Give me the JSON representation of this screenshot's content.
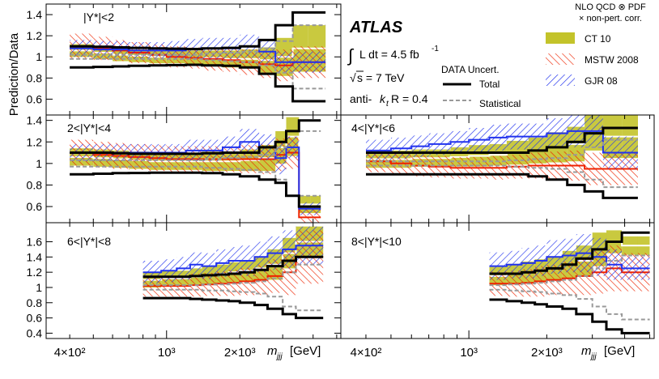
{
  "chart_data": {
    "type": "line",
    "figure": {
      "ylabel": "Prediction/Data",
      "xlabel_main": "m",
      "xlabel_sub": "jjj",
      "xlabel_unit": "[GeV]",
      "x_scale": "log",
      "xlim": [
        320,
        5200
      ],
      "x_ticks": [
        {
          "value": 400,
          "label": "4×10²"
        },
        {
          "value": 1000,
          "label": "10³"
        },
        {
          "value": 2000,
          "label": "2×10³"
        }
      ]
    },
    "atlas": {
      "brand": "ATLAS",
      "lumi_integral": "∫",
      "lumi_text": "L dt = 4.5 fb",
      "lumi_exp": "-1",
      "sqrt_sign": "√",
      "energy_text": "s = 7 TeV",
      "algo_prefix": "anti-",
      "algo_k": "k",
      "algo_sub": "t",
      "algo_suffix": " R = 0.4"
    },
    "legend": {
      "title_line1": "NLO QCD ⊗ PDF",
      "title_line2": "× non-pert. corr.",
      "theory": [
        {
          "name": "CT 10",
          "color": "#c3c32a"
        },
        {
          "name": "MSTW 2008",
          "color": "#ee2200"
        },
        {
          "name": "GJR 08",
          "color": "#2233ee"
        }
      ],
      "data_title": "DATA Uncert.",
      "total_label": "Total",
      "stat_label": "Statistical"
    },
    "colors": {
      "ct10": "#c3c32a",
      "mstw": "#ee2200",
      "gjr": "#2233ee",
      "total": "#000000",
      "stat": "#999999"
    },
    "panels": [
      {
        "label": "|Y*|<2",
        "ylim": [
          0.45,
          1.5
        ],
        "yticks": [
          {
            "value": 0.6,
            "label": "0.6"
          },
          {
            "value": 0.8,
            "label": "0.8"
          },
          {
            "value": 1.0,
            "label": "1"
          },
          {
            "value": 1.2,
            "label": "1.2"
          },
          {
            "value": 1.4,
            "label": "1.4"
          }
        ],
        "bins": [
          400,
          500,
          600,
          700,
          850,
          1000,
          1200,
          1400,
          1700,
          2000,
          2400,
          2800,
          3300,
          3800,
          4500
        ],
        "total_up": [
          1.1,
          1.095,
          1.09,
          1.085,
          1.08,
          1.078,
          1.075,
          1.08,
          1.085,
          1.1,
          1.16,
          1.3,
          1.42,
          1.42
        ],
        "total_down": [
          0.9,
          0.905,
          0.91,
          0.915,
          0.92,
          0.922,
          0.925,
          0.92,
          0.915,
          0.9,
          0.84,
          0.72,
          0.58,
          0.58
        ],
        "stat_up": [
          1.02,
          1.02,
          1.02,
          1.02,
          1.02,
          1.02,
          1.02,
          1.03,
          1.04,
          1.05,
          1.08,
          1.15,
          1.3,
          1.3
        ],
        "stat_down": [
          0.98,
          0.98,
          0.98,
          0.98,
          0.98,
          0.98,
          0.98,
          0.97,
          0.96,
          0.95,
          0.92,
          0.85,
          0.7,
          0.7
        ],
        "ct10": {
          "center": [
            1.06,
            1.04,
            1.02,
            1.01,
            1.0,
            1.0,
            0.99,
            0.99,
            0.98,
            0.98,
            0.97,
            1.0,
            1.08,
            1.08
          ],
          "half": [
            0.06,
            0.06,
            0.06,
            0.06,
            0.06,
            0.06,
            0.07,
            0.07,
            0.08,
            0.09,
            0.12,
            0.18,
            0.22,
            0.22
          ]
        },
        "mstw": {
          "center": [
            1.1,
            1.08,
            1.06,
            1.04,
            1.02,
            1.0,
            0.99,
            0.98,
            0.97,
            0.95,
            0.93,
            0.92,
            0.95,
            0.95
          ],
          "half": [
            0.12,
            0.11,
            0.1,
            0.1,
            0.1,
            0.1,
            0.1,
            0.11,
            0.11,
            0.12,
            0.13,
            0.15,
            0.15,
            0.15
          ]
        },
        "gjr": {
          "center": [
            1.08,
            1.07,
            1.07,
            1.06,
            1.06,
            1.06,
            1.07,
            1.08,
            1.08,
            1.1,
            1.05,
            0.95,
            0.95,
            0.95
          ],
          "half": [
            0.08,
            0.08,
            0.08,
            0.08,
            0.08,
            0.09,
            0.1,
            0.1,
            0.1,
            0.11,
            0.12,
            0.1,
            0.1,
            0.1
          ]
        }
      },
      {
        "label": "2<|Y*|<4",
        "ylim": [
          0.45,
          1.45
        ],
        "yticks": [
          {
            "value": 0.6,
            "label": "0.6"
          },
          {
            "value": 0.8,
            "label": "0.8"
          },
          {
            "value": 1.0,
            "label": "1"
          },
          {
            "value": 1.2,
            "label": "1.2"
          },
          {
            "value": 1.4,
            "label": "1.4"
          }
        ],
        "bins": [
          400,
          500,
          600,
          700,
          850,
          1000,
          1200,
          1400,
          1700,
          2000,
          2400,
          2800,
          3100,
          3500,
          3900,
          4300
        ],
        "total_up": [
          1.1,
          1.1,
          1.095,
          1.09,
          1.09,
          1.09,
          1.09,
          1.095,
          1.1,
          1.1,
          1.15,
          1.2,
          1.3,
          1.4,
          1.4
        ],
        "total_down": [
          0.9,
          0.905,
          0.91,
          0.912,
          0.915,
          0.915,
          0.915,
          0.91,
          0.9,
          0.88,
          0.85,
          0.82,
          0.7,
          0.6,
          0.6
        ],
        "stat_up": [
          1.03,
          1.03,
          1.03,
          1.03,
          1.03,
          1.03,
          1.03,
          1.04,
          1.05,
          1.06,
          1.08,
          1.15,
          1.3,
          1.3,
          1.3
        ],
        "stat_down": [
          0.97,
          0.97,
          0.97,
          0.97,
          0.97,
          0.97,
          0.97,
          0.96,
          0.95,
          0.94,
          0.92,
          0.85,
          0.7,
          0.7,
          0.7
        ],
        "ct10": {
          "center": [
            1.06,
            1.05,
            1.04,
            1.03,
            1.02,
            1.02,
            1.02,
            1.02,
            1.02,
            1.03,
            1.05,
            1.15,
            1.25,
            0.62,
            0.62
          ],
          "half": [
            0.08,
            0.08,
            0.08,
            0.08,
            0.08,
            0.08,
            0.08,
            0.09,
            0.09,
            0.1,
            0.12,
            0.15,
            0.18,
            0.08,
            0.08
          ]
        },
        "mstw": {
          "center": [
            1.1,
            1.08,
            1.07,
            1.06,
            1.05,
            1.04,
            1.04,
            1.04,
            1.04,
            1.04,
            1.04,
            1.08,
            1.1,
            0.5,
            0.5
          ],
          "half": [
            0.12,
            0.12,
            0.12,
            0.12,
            0.12,
            0.12,
            0.12,
            0.12,
            0.12,
            0.13,
            0.14,
            0.15,
            0.15,
            0.08,
            0.08
          ]
        },
        "gjr": {
          "center": [
            1.1,
            1.1,
            1.1,
            1.1,
            1.1,
            1.1,
            1.12,
            1.12,
            1.15,
            1.2,
            1.15,
            1.05,
            1.15,
            0.58,
            0.58
          ],
          "half": [
            0.08,
            0.08,
            0.08,
            0.08,
            0.08,
            0.08,
            0.1,
            0.1,
            0.1,
            0.12,
            0.12,
            0.15,
            0.1,
            0.06,
            0.06
          ]
        }
      },
      {
        "label": "4<|Y*|<6",
        "ylim": [
          0.45,
          1.45
        ],
        "yticks": [],
        "bins": [
          400,
          500,
          600,
          700,
          850,
          1000,
          1200,
          1400,
          1700,
          2000,
          2400,
          2800,
          3300,
          3900,
          4500
        ],
        "total_up": [
          1.1,
          1.1,
          1.1,
          1.1,
          1.1,
          1.1,
          1.1,
          1.1,
          1.12,
          1.15,
          1.2,
          1.28,
          1.33,
          1.33
        ],
        "total_down": [
          0.9,
          0.9,
          0.9,
          0.9,
          0.9,
          0.9,
          0.9,
          0.9,
          0.88,
          0.85,
          0.8,
          0.74,
          0.68,
          0.68
        ],
        "stat_up": [
          1.02,
          1.02,
          1.02,
          1.02,
          1.02,
          1.02,
          1.02,
          1.03,
          1.04,
          1.05,
          1.08,
          1.15,
          1.22,
          1.22
        ],
        "stat_down": [
          0.98,
          0.98,
          0.98,
          0.98,
          0.98,
          0.98,
          0.98,
          0.97,
          0.96,
          0.95,
          0.92,
          0.85,
          0.78,
          0.78
        ],
        "ct10": {
          "center": [
            1.04,
            1.04,
            1.05,
            1.05,
            1.06,
            1.07,
            1.08,
            1.1,
            1.12,
            1.15,
            1.18,
            1.3,
            1.25,
            1.25
          ],
          "half": [
            0.08,
            0.08,
            0.08,
            0.08,
            0.09,
            0.1,
            0.1,
            0.11,
            0.12,
            0.14,
            0.16,
            0.18,
            0.2,
            0.2
          ]
        },
        "mstw": {
          "center": [
            1.02,
            1.0,
            0.98,
            0.97,
            0.96,
            0.96,
            0.96,
            0.97,
            0.98,
            0.98,
            0.98,
            0.95,
            0.95,
            0.95
          ],
          "half": [
            0.1,
            0.1,
            0.1,
            0.1,
            0.1,
            0.1,
            0.11,
            0.11,
            0.12,
            0.13,
            0.14,
            0.15,
            0.15,
            0.15
          ]
        },
        "gjr": {
          "center": [
            1.12,
            1.14,
            1.16,
            1.18,
            1.2,
            1.22,
            1.24,
            1.25,
            1.25,
            1.28,
            1.3,
            1.3,
            1.1,
            1.1
          ],
          "half": [
            0.1,
            0.1,
            0.1,
            0.1,
            0.1,
            0.11,
            0.12,
            0.12,
            0.12,
            0.14,
            0.15,
            0.15,
            0.15,
            0.15
          ]
        }
      },
      {
        "label": "6<|Y*|<8",
        "ylim": [
          0.33,
          1.85
        ],
        "yticks": [
          {
            "value": 0.4,
            "label": "0.4"
          },
          {
            "value": 0.6,
            "label": "0.6"
          },
          {
            "value": 0.8,
            "label": "0.8"
          },
          {
            "value": 1.0,
            "label": "1"
          },
          {
            "value": 1.2,
            "label": "1.2"
          },
          {
            "value": 1.4,
            "label": "1.4"
          },
          {
            "value": 1.6,
            "label": "1.6"
          }
        ],
        "bins": [
          800,
          950,
          1100,
          1250,
          1400,
          1600,
          1800,
          2000,
          2300,
          2600,
          3000,
          3400,
          3800,
          4400
        ],
        "total_up": [
          1.14,
          1.14,
          1.14,
          1.15,
          1.16,
          1.17,
          1.18,
          1.2,
          1.23,
          1.28,
          1.35,
          1.4,
          1.4
        ],
        "total_down": [
          0.86,
          0.86,
          0.86,
          0.85,
          0.84,
          0.83,
          0.82,
          0.8,
          0.77,
          0.72,
          0.65,
          0.6,
          0.6
        ],
        "stat_up": [
          1.03,
          1.03,
          1.03,
          1.03,
          1.04,
          1.04,
          1.05,
          1.06,
          1.08,
          1.12,
          1.2,
          1.3,
          1.3
        ],
        "stat_down": [
          0.97,
          0.97,
          0.97,
          0.97,
          0.96,
          0.96,
          0.95,
          0.94,
          0.92,
          0.88,
          0.75,
          0.7,
          0.7
        ],
        "ct10": {
          "center": [
            1.1,
            1.12,
            1.12,
            1.14,
            1.16,
            1.18,
            1.2,
            1.22,
            1.25,
            1.3,
            1.45,
            1.6,
            1.6
          ],
          "half": [
            0.1,
            0.1,
            0.1,
            0.11,
            0.12,
            0.12,
            0.13,
            0.14,
            0.16,
            0.2,
            0.2,
            0.2,
            0.2
          ]
        },
        "mstw": {
          "center": [
            1.02,
            1.02,
            1.02,
            1.03,
            1.04,
            1.05,
            1.06,
            1.08,
            1.1,
            1.15,
            1.2,
            1.4,
            1.4
          ],
          "half": [
            0.14,
            0.14,
            0.14,
            0.15,
            0.15,
            0.16,
            0.17,
            0.18,
            0.2,
            0.22,
            0.3,
            0.35,
            0.35
          ]
        },
        "gjr": {
          "center": [
            1.2,
            1.22,
            1.25,
            1.3,
            1.28,
            1.32,
            1.35,
            1.35,
            1.4,
            1.45,
            1.5,
            1.55,
            1.55
          ],
          "half": [
            0.15,
            0.15,
            0.15,
            0.16,
            0.17,
            0.18,
            0.18,
            0.2,
            0.2,
            0.22,
            0.25,
            0.25,
            0.25
          ]
        }
      },
      {
        "label": "8<|Y*|<10",
        "ylim": [
          0.33,
          1.85
        ],
        "yticks": [],
        "bins": [
          1200,
          1400,
          1600,
          1800,
          2000,
          2300,
          2600,
          3000,
          3400,
          3900,
          4500,
          5000
        ],
        "total_up": [
          1.18,
          1.18,
          1.2,
          1.22,
          1.25,
          1.3,
          1.38,
          1.5,
          1.6,
          1.72,
          1.72
        ],
        "total_down": [
          0.84,
          0.82,
          0.8,
          0.78,
          0.75,
          0.72,
          0.65,
          0.55,
          0.45,
          0.4,
          0.4
        ],
        "stat_up": [
          1.03,
          1.04,
          1.05,
          1.06,
          1.08,
          1.1,
          1.15,
          1.25,
          1.35,
          1.42,
          1.42
        ],
        "stat_down": [
          0.97,
          0.96,
          0.95,
          0.94,
          0.92,
          0.9,
          0.85,
          0.75,
          0.65,
          0.58,
          0.58
        ],
        "ct10": {
          "center": [
            1.15,
            1.18,
            1.2,
            1.22,
            1.25,
            1.3,
            1.35,
            1.5,
            1.6,
            1.55,
            1.55
          ],
          "half": [
            0.12,
            0.13,
            0.14,
            0.15,
            0.16,
            0.18,
            0.2,
            0.22,
            0.15,
            0.12,
            0.12
          ]
        },
        "mstw": {
          "center": [
            1.05,
            1.05,
            1.06,
            1.08,
            1.1,
            1.12,
            1.15,
            1.2,
            1.25,
            1.2,
            1.2
          ],
          "half": [
            0.16,
            0.17,
            0.18,
            0.2,
            0.2,
            0.22,
            0.25,
            0.28,
            0.3,
            0.25,
            0.25
          ]
        },
        "gjr": {
          "center": [
            1.28,
            1.3,
            1.32,
            1.35,
            1.4,
            1.42,
            1.45,
            1.4,
            1.3,
            1.25,
            1.25
          ],
          "half": [
            0.18,
            0.18,
            0.2,
            0.2,
            0.22,
            0.22,
            0.25,
            0.25,
            0.2,
            0.15,
            0.15
          ]
        }
      }
    ]
  }
}
